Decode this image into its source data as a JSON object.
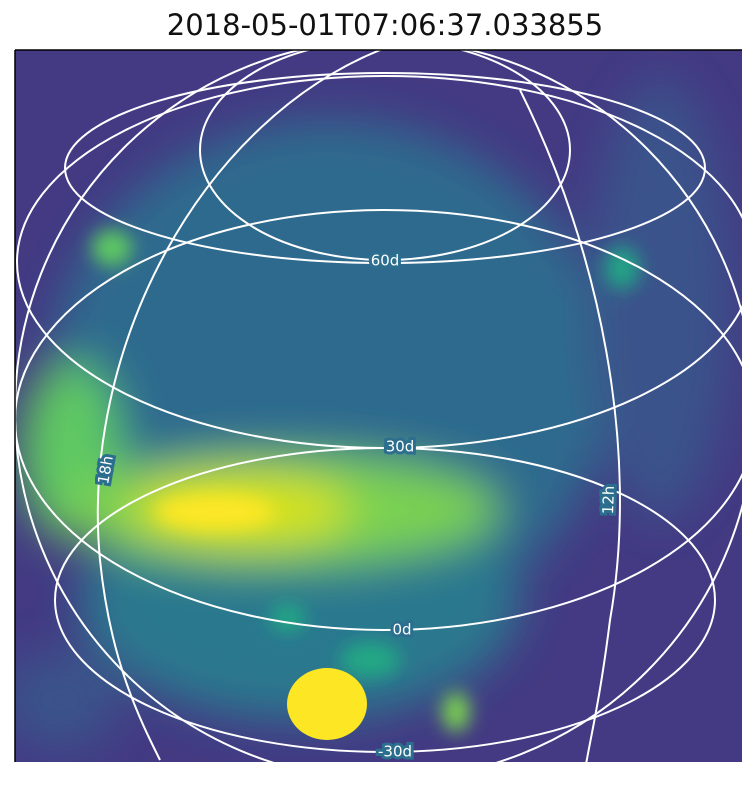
{
  "chart_data": {
    "type": "image",
    "title": "2018-05-01T07:06:37.033855",
    "grid_labels": [
      "60d",
      "30d",
      "0d",
      "-30d",
      "18h",
      "12h"
    ]
  }
}
